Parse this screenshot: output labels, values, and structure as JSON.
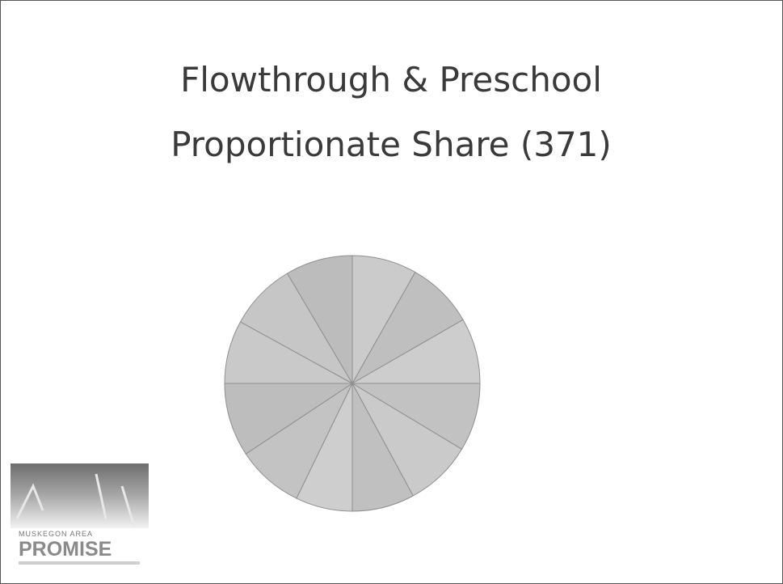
{
  "chart_data": {
    "type": "pie",
    "title": [
      "Flowthrough & Preschool",
      "Proportionate Share (371)"
    ],
    "values": [
      8.2,
      8.5,
      8.3,
      8.6,
      8.5,
      7.9,
      7.2,
      8.5,
      9.3,
      8.0,
      8.5,
      8.5
    ],
    "colors": [
      "#cbcbcb",
      "#bfbfbf",
      "#cdcdcd",
      "#c2c2c2",
      "#cacaca",
      "#c0c0c0",
      "#cecece",
      "#c3c3c3",
      "#bdbdbd",
      "#c9c9c9",
      "#c6c6c6",
      "#bcbcbc"
    ]
  },
  "logo": {
    "top_line": "MUSKEGON AREA",
    "name": "PROMISE"
  }
}
